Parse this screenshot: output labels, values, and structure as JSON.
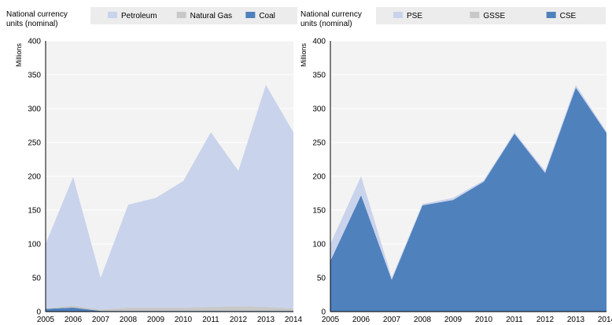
{
  "chart_data": [
    {
      "type": "area",
      "stacked": true,
      "ylabel_top": "National currency units (nominal)",
      "ylabel": "Millions",
      "x": [
        "2005",
        "2006",
        "2007",
        "2008",
        "2009",
        "2010",
        "2011",
        "2012",
        "2013",
        "2014"
      ],
      "ylim": [
        0,
        400
      ],
      "yticks": [
        0,
        50,
        100,
        150,
        200,
        250,
        300,
        350,
        400
      ],
      "legend_position": "top",
      "series": [
        {
          "name": "Coal",
          "color": "#4f81bd",
          "values": [
            4,
            6,
            1,
            1,
            1,
            1,
            1,
            1,
            1,
            1
          ]
        },
        {
          "name": "Natural Gas",
          "color": "#c8c8c8",
          "values": [
            1,
            3,
            2,
            5,
            5,
            5,
            6,
            7,
            6,
            4
          ]
        },
        {
          "name": "Petroleum",
          "color": "#c9d3ec",
          "values": [
            95,
            190,
            47,
            152,
            162,
            187,
            258,
            200,
            328,
            260
          ]
        }
      ],
      "legend_order": [
        "Petroleum",
        "Natural Gas",
        "Coal"
      ]
    },
    {
      "type": "area",
      "stacked": true,
      "ylabel_top": "National currency units (nominal)",
      "ylabel": "Millions",
      "x": [
        "2005",
        "2006",
        "2007",
        "2008",
        "2009",
        "2010",
        "2011",
        "2012",
        "2013",
        "2014"
      ],
      "ylim": [
        0,
        400
      ],
      "yticks": [
        0,
        50,
        100,
        150,
        200,
        250,
        300,
        350,
        400
      ],
      "legend_position": "top",
      "series": [
        {
          "name": "CSE",
          "color": "#4f81bd",
          "values": [
            75,
            172,
            47,
            157,
            165,
            192,
            263,
            205,
            331,
            264
          ]
        },
        {
          "name": "GSSE",
          "color": "#c8c8c8",
          "values": [
            0,
            0,
            0,
            0,
            0,
            0,
            0,
            0,
            0,
            0
          ]
        },
        {
          "name": "PSE",
          "color": "#c9d3ec",
          "values": [
            25,
            28,
            3,
            2,
            3,
            2,
            2,
            3,
            4,
            2
          ]
        }
      ],
      "legend_order": [
        "PSE",
        "GSSE",
        "CSE"
      ]
    }
  ]
}
